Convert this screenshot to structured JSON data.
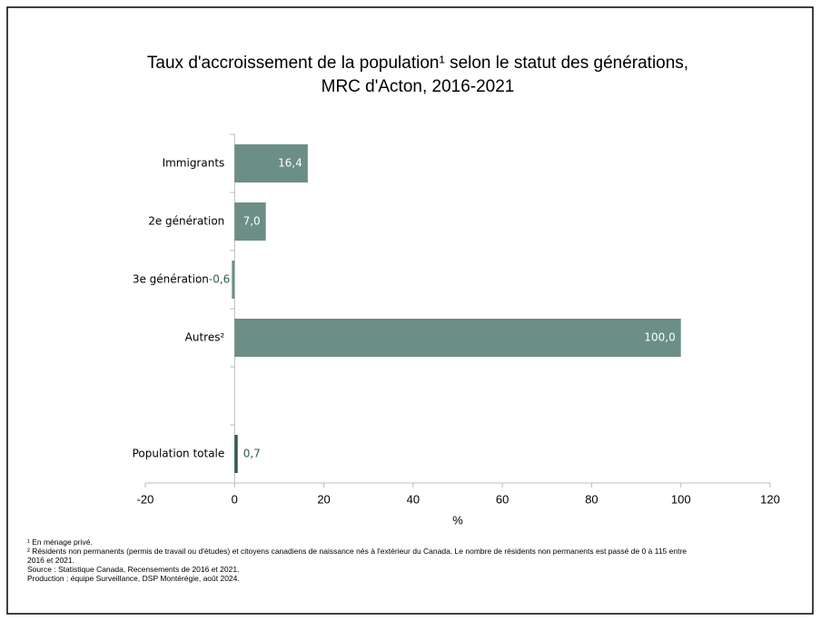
{
  "chart_data": {
    "type": "hbar",
    "title": [
      "Taux d'accroissement de la population¹ selon le statut des générations,",
      "MRC d'Acton, 2016-2021"
    ],
    "categories": [
      "Immigrants",
      "2e génération",
      "3e génération",
      "Autres²",
      null,
      "Population totale"
    ],
    "values": [
      16.4,
      7.0,
      -0.6,
      100.0,
      null,
      0.7
    ],
    "value_labels": [
      "16,4",
      "7,0",
      "-0,6",
      "100,0",
      null,
      "0,7"
    ],
    "colors": [
      "#6b8e86",
      "#6b8e86",
      "#6b8e86",
      "#6b8e86",
      null,
      "#2f5d4f"
    ],
    "xlim": [
      -20,
      120
    ],
    "xticks": [
      -20,
      0,
      20,
      40,
      60,
      80,
      100,
      120
    ],
    "x_label": "%",
    "notes": [
      "¹ En ménage privé.",
      "² Résidents non permanents (permis de travail ou d'études) et citoyens canadiens de naissance nés à l'extérieur du Canada. Le nombre de résidents non permanents est passé de 0 à 115 entre",
      "2016 et 2021.",
      "Source : Statistique Canada, Recensements de 2016 et 2021.",
      "Production : équipe Surveillance, DSP Montérégie, août 2024."
    ]
  }
}
